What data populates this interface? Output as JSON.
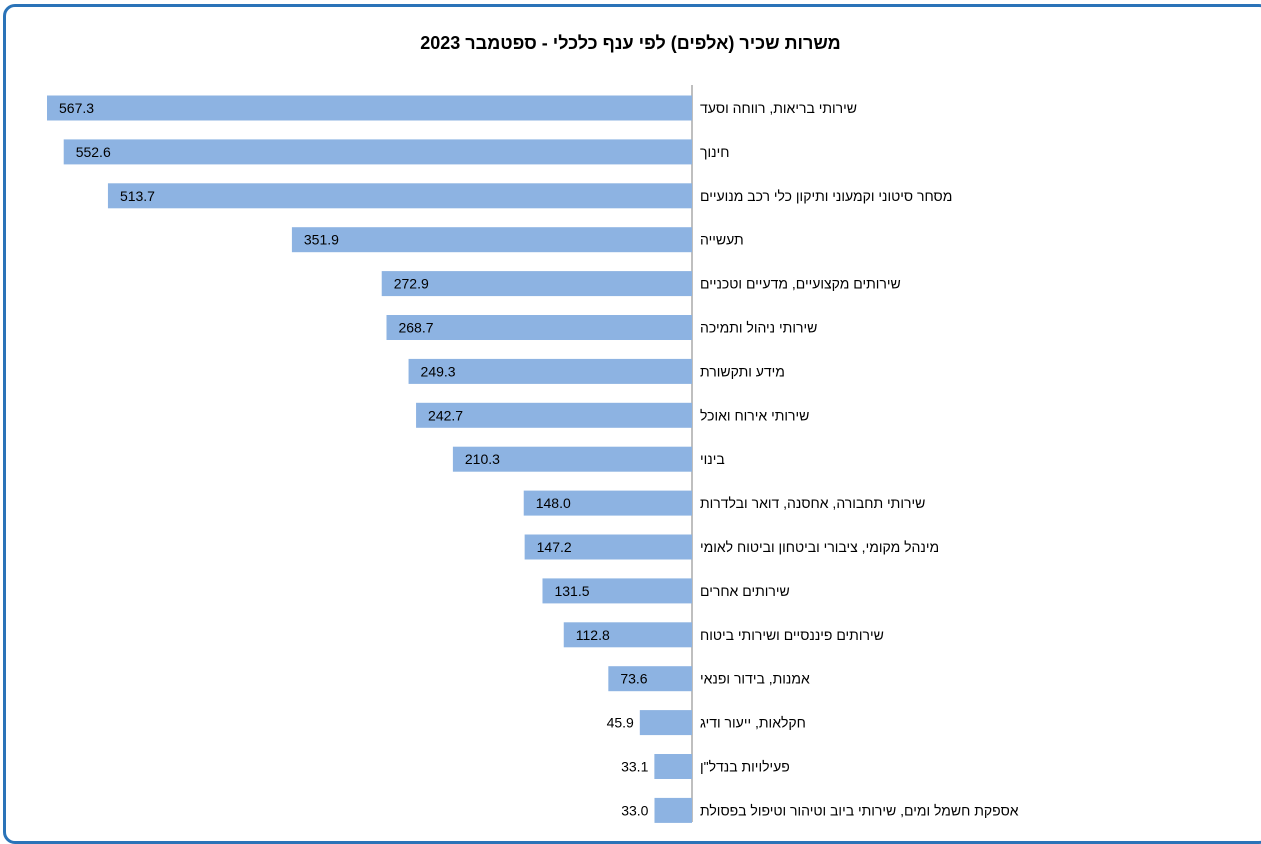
{
  "colors": {
    "bar": "#8db3e2",
    "frame": "#2a73b8",
    "axis": "#7f7f7f"
  },
  "chart_data": {
    "type": "bar",
    "orientation": "horizontal",
    "direction": "right-to-left",
    "title": "משרות שכיר (אלפים) לפי ענף כלכלי - ספטמבר 2023",
    "xlabel": "",
    "ylabel": "",
    "xlim": [
      0,
      580
    ],
    "grid": false,
    "categories": [
      "שירותי בריאות, רווחה וסעד",
      "חינוך",
      "מסחר סיטוני וקמעוני ותיקון כלי רכב מנועיים",
      "תעשייה",
      "שירותים מקצועיים, מדעיים וטכניים",
      "שירותי ניהול ותמיכה",
      "מידע ותקשורת",
      "שירותי אירוח ואוכל",
      "בינוי",
      "שירותי תחבורה, אחסנה, דואר ובלדרות",
      "מינהל מקומי, ציבורי וביטחון וביטוח לאומי",
      "שירותים אחרים",
      "שירותים פיננסיים ושירותי ביטוח",
      "אמנות, בידור ופנאי",
      "חקלאות, ייעור ודיג",
      "פעילויות בנדל\"ן",
      "אספקת חשמל ומים, שירותי ביוב וטיהור וטיפול בפסולת"
    ],
    "values": [
      567.3,
      552.6,
      513.7,
      351.9,
      272.9,
      268.7,
      249.3,
      242.7,
      210.3,
      148.0,
      147.2,
      131.5,
      112.8,
      73.6,
      45.9,
      33.1,
      33.0
    ],
    "value_labels": [
      "567.3",
      "552.6",
      "513.7",
      "351.9",
      "272.9",
      "268.7",
      "249.3",
      "242.7",
      "210.3",
      "148.0",
      "147.2",
      "131.5",
      "112.8",
      "73.6",
      "45.9",
      "33.1",
      "33.0"
    ]
  }
}
